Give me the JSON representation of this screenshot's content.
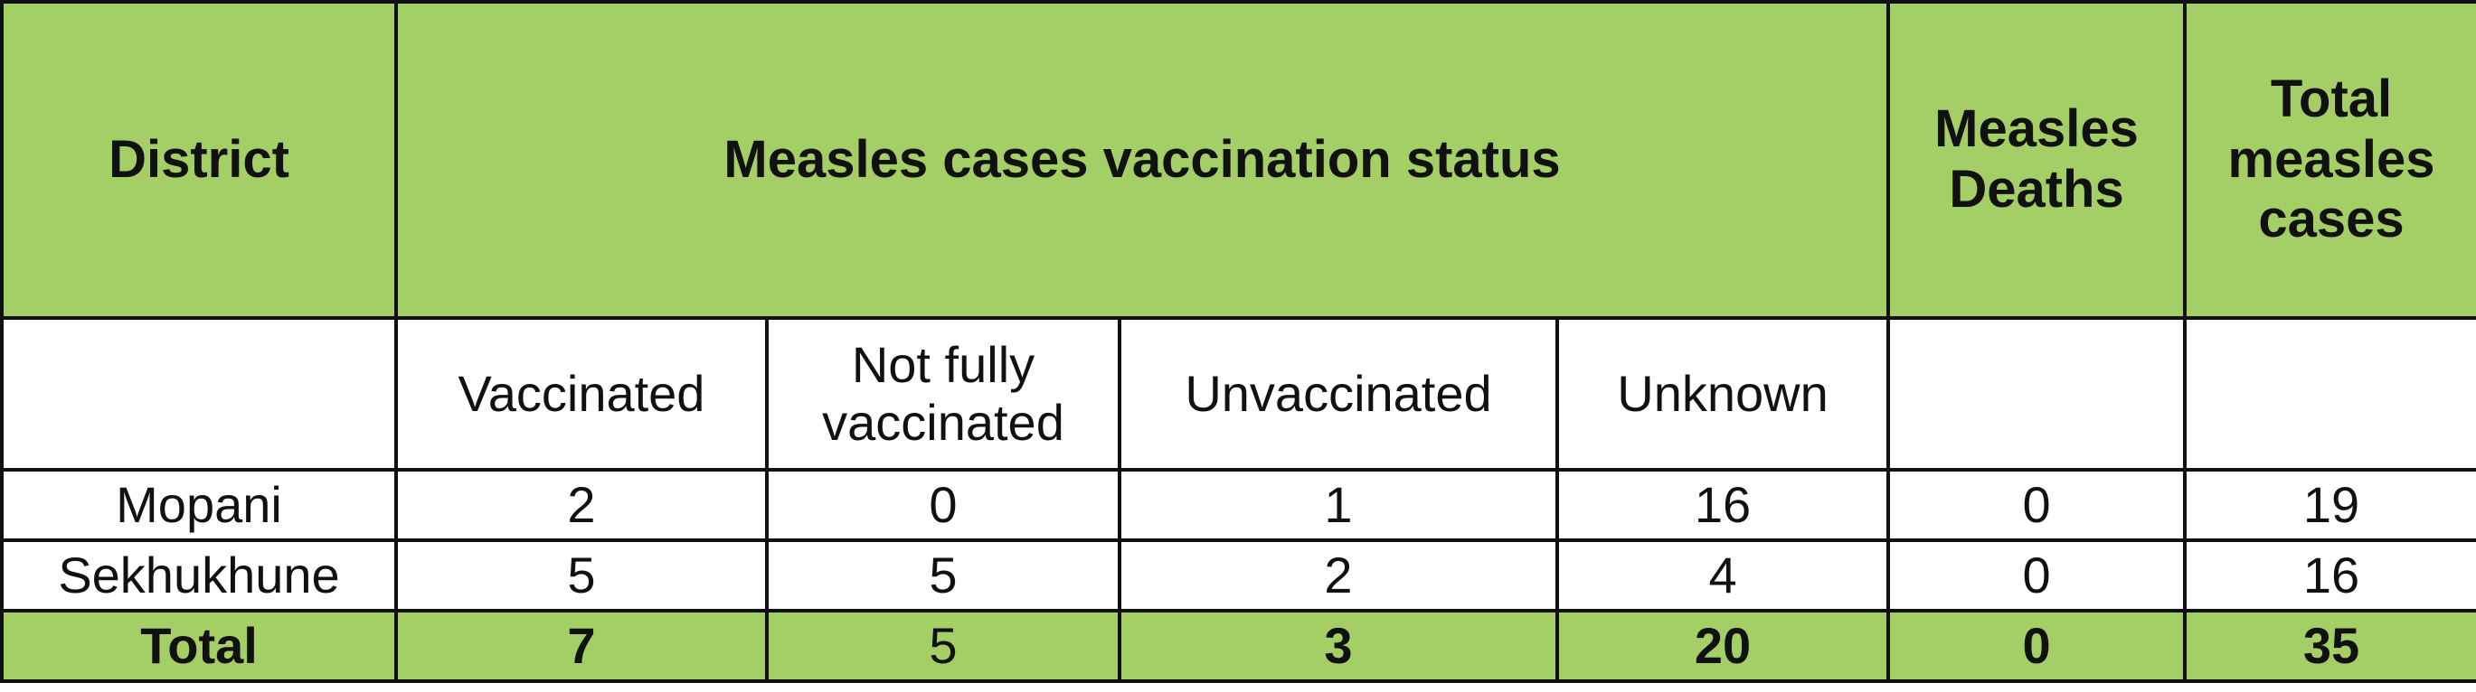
{
  "colors": {
    "header_fill": "#a3cf66",
    "border": "#111111",
    "text": "#111111"
  },
  "header": {
    "district": "District",
    "vaccination_status": "Measles cases vaccination status",
    "deaths_line1": "Measles",
    "deaths_line2": "Deaths",
    "total_line1": "Total",
    "total_line2": "measles",
    "total_line3": "cases"
  },
  "subheader": {
    "vaccinated": "Vaccinated",
    "not_fully_line1": "Not fully",
    "not_fully_line2": "vaccinated",
    "unvaccinated": "Unvaccinated",
    "unknown": "Unknown"
  },
  "rows": [
    {
      "district": "Mopani",
      "vaccinated": "2",
      "not_fully_vaccinated": "0",
      "unvaccinated": "1",
      "unknown": "16",
      "deaths": "0",
      "total": "19"
    },
    {
      "district": "Sekhukhune",
      "vaccinated": "5",
      "not_fully_vaccinated": "5",
      "unvaccinated": "2",
      "unknown": "4",
      "deaths": "0",
      "total": "16"
    }
  ],
  "total_row": {
    "label": "Total",
    "vaccinated": "7",
    "not_fully_vaccinated": "5",
    "unvaccinated": "3",
    "unknown": "20",
    "deaths": "0",
    "total": "35"
  }
}
